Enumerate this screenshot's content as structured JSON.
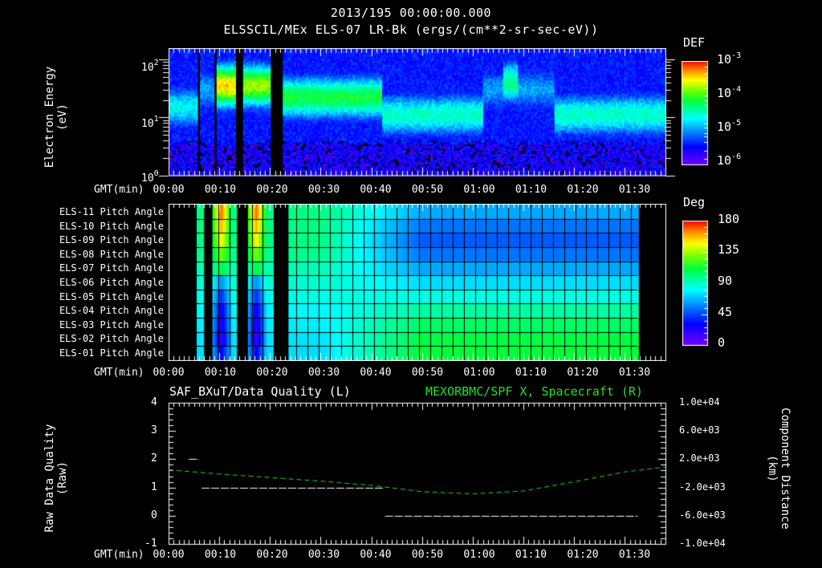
{
  "header": {
    "date_time": "2013/195 00:00:00.000",
    "subtitle": "ELSSCIL/MEx ELS-07 LR-Bk  (ergs/(cm**2-sr-sec-eV))"
  },
  "colors": {
    "background": "#000000",
    "axes": "#ffffff",
    "green_trace": "#22e022",
    "data_quality_trace": "#ffffff"
  },
  "chart_data": [
    {
      "type": "heatmap",
      "name": "electron-energy-spectrogram",
      "title": "ELSSCIL/MEx ELS-07 LR-Bk  (ergs/(cm**2-sr-sec-eV))",
      "xlabel": "GMT(min)",
      "ylabel": "Electron Energy (eV)",
      "yscale": "log",
      "ylim": [
        1,
        150
      ],
      "xlim_min": [
        0,
        98
      ],
      "y_ticks": [
        "10^0",
        "10^1",
        "10^2"
      ],
      "x_ticks": [
        "00:00",
        "00:10",
        "00:20",
        "00:30",
        "00:40",
        "00:50",
        "01:00",
        "01:10",
        "01:20",
        "01:30"
      ],
      "colorbar": {
        "label": "DEF",
        "scale": "log",
        "range": [
          1e-06,
          0.001
        ],
        "ticks": [
          "10^-6",
          "10^-5",
          "10^-4",
          "10^-3"
        ]
      },
      "data_gaps_min": [
        [
          5.4,
          6.2
        ],
        [
          8.7,
          9.4
        ],
        [
          13.2,
          14.6
        ],
        [
          20.0,
          22.7
        ]
      ],
      "features": [
        {
          "start_min": 0,
          "end_min": 5.4,
          "peak_energy_eV": 15,
          "level": 0.45
        },
        {
          "start_min": 9.4,
          "end_min": 13.2,
          "peak_energy_eV": 35,
          "level": 0.85
        },
        {
          "start_min": 14.6,
          "end_min": 20.0,
          "peak_energy_eV": 35,
          "level": 0.75
        },
        {
          "start_min": 22.7,
          "end_min": 42,
          "peak_energy_eV": 22,
          "level": 0.62
        },
        {
          "start_min": 42,
          "end_min": 62,
          "peak_energy_eV": 11,
          "level": 0.5
        },
        {
          "start_min": 66,
          "end_min": 69,
          "peak_energy_eV": 40,
          "level": 0.55
        },
        {
          "start_min": 76,
          "end_min": 98,
          "peak_energy_eV": 11,
          "level": 0.5
        }
      ]
    },
    {
      "type": "heatmap",
      "name": "pitch-angle",
      "xlabel": "GMT(min)",
      "rows": [
        "ELS-11 Pitch Angle",
        "ELS-10 Pitch Angle",
        "ELS-09 Pitch Angle",
        "ELS-08 Pitch Angle",
        "ELS-07 Pitch Angle",
        "ELS-06 Pitch Angle",
        "ELS-05 Pitch Angle",
        "ELS-04 Pitch Angle",
        "ELS-03 Pitch Angle",
        "ELS-02 Pitch Angle",
        "ELS-01 Pitch Angle"
      ],
      "x_ticks": [
        "00:00",
        "00:10",
        "00:20",
        "00:30",
        "00:40",
        "00:50",
        "01:00",
        "01:10",
        "01:20",
        "01:30"
      ],
      "colorbar": {
        "label": "Deg",
        "range": [
          0,
          180
        ],
        "ticks": [
          "0",
          "45",
          "90",
          "135",
          "180"
        ]
      },
      "data_coverage_min": [
        [
          5.4,
          92.5
        ]
      ],
      "data_gaps_min": [
        [
          6.8,
          8.6
        ],
        [
          13.2,
          15.6
        ],
        [
          20.5,
          23.5
        ]
      ],
      "approx_values_deg": {
        "early_0005_to_0030": [
          100,
          100,
          100,
          98,
          92,
          88,
          85,
          80,
          78,
          76,
          75
        ],
        "late_0050_to_0130": [
          65,
          55,
          50,
          55,
          65,
          75,
          85,
          95,
          105,
          110,
          112
        ],
        "spike_0010_and_0017": [
          170,
          160,
          150,
          130,
          110,
          60,
          40,
          25,
          20,
          15,
          30
        ]
      }
    },
    {
      "type": "line",
      "name": "data-quality-and-spacecraft-x",
      "title_left": "SAF_BXuT/Data Quality (L)",
      "title_right": "MEXORBMC/SPF X, Spacecraft (R)",
      "xlabel": "GMT(min)",
      "ylabel_left": "Raw Data Quality (Raw)",
      "ylabel_right": "Component Distance (km)",
      "ylim_left": [
        -1,
        4
      ],
      "ylim_right": [
        -10000,
        10000
      ],
      "y_ticks_left": [
        "-1",
        "0",
        "1",
        "2",
        "3",
        "4"
      ],
      "y_ticks_right": [
        "-1.0e+04",
        "-6.0e+03",
        "-2.0e+03",
        "2.0e+03",
        "6.0e+03",
        "1.0e+04"
      ],
      "x_ticks": [
        "00:00",
        "00:10",
        "00:20",
        "00:30",
        "00:40",
        "00:50",
        "01:00",
        "01:10",
        "01:20",
        "01:30"
      ],
      "series": [
        {
          "name": "SAF_BXuT Data Quality",
          "axis": "left",
          "color": "#ffffff",
          "segments": [
            {
              "x_min": [
                4.0,
                6.0
              ],
              "value": 2
            },
            {
              "x_min": [
                6.5,
                42.5
              ],
              "value": 1
            },
            {
              "x_min": [
                42.7,
                92.5
              ],
              "value": 0
            }
          ]
        },
        {
          "name": "MEXORBMC/SPF X Spacecraft",
          "axis": "right",
          "color": "#22e022",
          "style": "dashed",
          "x": [
            0,
            10,
            20,
            30,
            40,
            50,
            60,
            70,
            80,
            90,
            98
          ],
          "values": [
            500,
            -100,
            -600,
            -1100,
            -1700,
            -2600,
            -2900,
            -2500,
            -1200,
            200,
            900
          ]
        }
      ]
    }
  ],
  "panel1": {
    "ylabel_line1": "Electron Energy",
    "ylabel_line2": "(eV)",
    "yticks": [
      {
        "base": "10",
        "exp": "2"
      },
      {
        "base": "10",
        "exp": "1"
      },
      {
        "base": "10",
        "exp": "0"
      }
    ],
    "xlabel": "GMT(min)",
    "xticks": [
      "00:00",
      "00:10",
      "00:20",
      "00:30",
      "00:40",
      "00:50",
      "01:00",
      "01:10",
      "01:20",
      "01:30"
    ],
    "colorbar_label": "DEF",
    "cbticks": [
      {
        "base": "10",
        "exp": "-3"
      },
      {
        "base": "10",
        "exp": "-4"
      },
      {
        "base": "10",
        "exp": "-5"
      },
      {
        "base": "10",
        "exp": "-6"
      }
    ]
  },
  "panel2": {
    "rows": [
      "ELS-11 Pitch Angle",
      "ELS-10 Pitch Angle",
      "ELS-09 Pitch Angle",
      "ELS-08 Pitch Angle",
      "ELS-07 Pitch Angle",
      "ELS-06 Pitch Angle",
      "ELS-05 Pitch Angle",
      "ELS-04 Pitch Angle",
      "ELS-03 Pitch Angle",
      "ELS-02 Pitch Angle",
      "ELS-01 Pitch Angle"
    ],
    "xlabel": "GMT(min)",
    "xticks": [
      "00:00",
      "00:10",
      "00:20",
      "00:30",
      "00:40",
      "00:50",
      "01:00",
      "01:10",
      "01:20",
      "01:30"
    ],
    "colorbar_label": "Deg",
    "cbticks": [
      "180",
      "135",
      "90",
      "45",
      "0"
    ]
  },
  "panel3": {
    "title_left": "SAF_BXuT/Data Quality (L)",
    "title_right": "MEXORBMC/SPF X, Spacecraft (R)",
    "ylabel_left_line1": "Raw Data Quality",
    "ylabel_left_line2": "(Raw)",
    "ylabel_right_line1": "Component Distance",
    "ylabel_right_line2": "(km)",
    "yticks_left": [
      "4",
      "3",
      "2",
      "1",
      "0",
      "-1"
    ],
    "yticks_right": [
      "1.0e+04",
      "6.0e+03",
      "2.0e+03",
      "-2.0e+03",
      "-6.0e+03",
      "-1.0e+04"
    ],
    "xlabel": "GMT(min)",
    "xticks": [
      "00:00",
      "00:10",
      "00:20",
      "00:30",
      "00:40",
      "00:50",
      "01:00",
      "01:10",
      "01:20",
      "01:30"
    ]
  }
}
